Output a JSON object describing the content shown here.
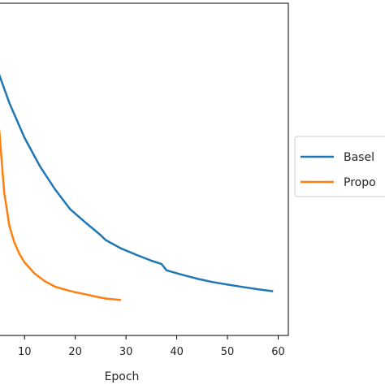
{
  "chart_data": {
    "type": "line",
    "xlabel": "Epoch",
    "ylabel": "",
    "title": "",
    "xlim": [
      5,
      62
    ],
    "ylim": [
      0,
      1
    ],
    "xticks": [
      "10",
      "20",
      "30",
      "40",
      "50",
      "60"
    ],
    "grid": false,
    "legend_position": "right-outside",
    "series": [
      {
        "name": "Basel",
        "color": "#1f77b4",
        "x": [
          5,
          7,
          10,
          13,
          16,
          19,
          22,
          25,
          26,
          29,
          32,
          35,
          37,
          38,
          41,
          44,
          47,
          50,
          53,
          56,
          59
        ],
        "y": [
          0.785,
          0.7,
          0.595,
          0.51,
          0.44,
          0.38,
          0.34,
          0.302,
          0.287,
          0.262,
          0.243,
          0.225,
          0.215,
          0.196,
          0.183,
          0.171,
          0.161,
          0.153,
          0.146,
          0.139,
          0.133
        ]
      },
      {
        "name": "Propo",
        "color": "#ff7f0e",
        "x": [
          5,
          6,
          7,
          8,
          9,
          10,
          12,
          14,
          16,
          18,
          20,
          22,
          24,
          26,
          28,
          29
        ],
        "y": [
          0.62,
          0.43,
          0.33,
          0.28,
          0.245,
          0.22,
          0.186,
          0.163,
          0.147,
          0.138,
          0.13,
          0.124,
          0.117,
          0.111,
          0.108,
          0.107
        ]
      }
    ]
  }
}
